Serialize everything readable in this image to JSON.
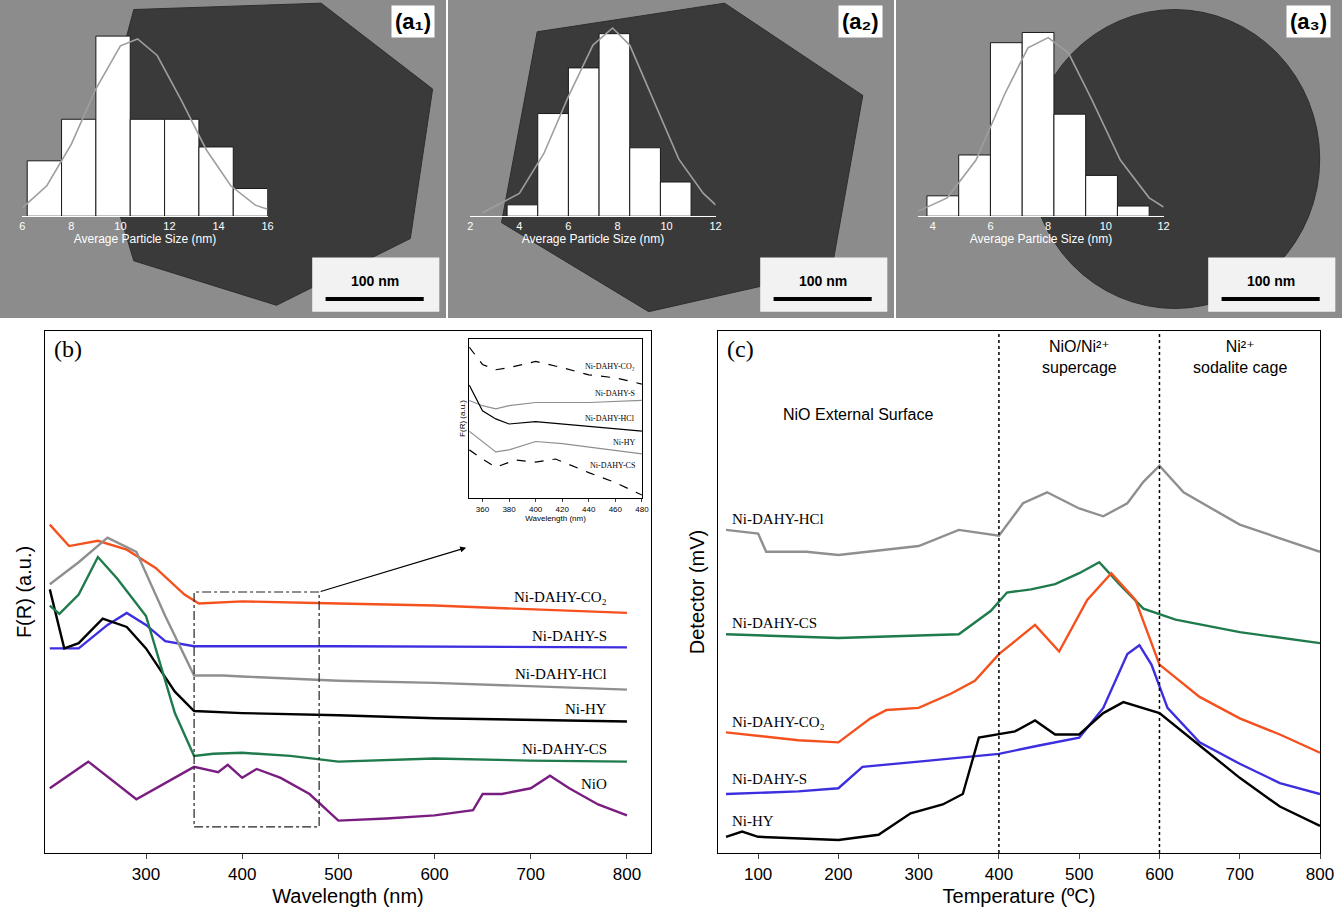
{
  "chart_data": [
    {
      "type": "histogram",
      "title": "(a₁)",
      "x_label": "Average Particle Size (nm)",
      "annotations": [
        "100 nm"
      ],
      "bins": [
        6.2,
        7.6,
        9,
        10.4,
        11.8,
        13.2,
        14.6,
        16
      ],
      "values": [
        4,
        7,
        13,
        7,
        7,
        5,
        2
      ],
      "color": "#ffffff",
      "fit": {
        "type": "line",
        "color": "#9e9e9e",
        "x": [
          6,
          7,
          8,
          9,
          10,
          10.7,
          11.5,
          12.5,
          13.5,
          14.5,
          15.5,
          16
        ],
        "values": [
          0.6,
          2.2,
          5.2,
          9.2,
          12.3,
          12.8,
          11.6,
          8.3,
          4.8,
          2.2,
          0.8,
          0.5
        ]
      },
      "xlim": [
        6,
        16
      ],
      "xticks": [
        6,
        8,
        10,
        12,
        14,
        16
      ],
      "ylim": [
        0,
        14
      ],
      "tick_labels": "x",
      "grid": false
    },
    {
      "type": "histogram",
      "title": "(a₂)",
      "x_label": "Average Particle Size (nm)",
      "annotations": [
        "100 nm"
      ],
      "bins": [
        3.5,
        4.75,
        6,
        7.25,
        8.5,
        9.75,
        11
      ],
      "values": [
        1,
        9,
        13,
        16,
        6,
        3
      ],
      "color": "#ffffff",
      "fit": {
        "type": "line",
        "color": "#9e9e9e",
        "x": [
          2.5,
          4,
          5,
          6,
          7,
          7.8,
          8.5,
          9.5,
          10.5,
          11.5,
          12
        ],
        "values": [
          0.3,
          2,
          5.5,
          10.5,
          15,
          16.5,
          15,
          10,
          5,
          2,
          1
        ]
      },
      "xlim": [
        2,
        12
      ],
      "xticks": [
        2,
        4,
        6,
        8,
        10,
        12
      ],
      "ylim": [
        0,
        17
      ],
      "tick_labels": "x",
      "grid": false
    },
    {
      "type": "histogram",
      "title": "(a₃)",
      "x_label": "Average Particle Size (nm)",
      "annotations": [
        "100 nm"
      ],
      "bins": [
        3.8,
        4.9,
        6,
        7.1,
        8.2,
        9.3,
        10.4,
        11.5
      ],
      "values": [
        2,
        6,
        17,
        18,
        10,
        4,
        1
      ],
      "color": "#ffffff",
      "fit": {
        "type": "line",
        "color": "#9e9e9e",
        "x": [
          3.5,
          4.5,
          5.5,
          6.5,
          7.3,
          8,
          8.7,
          9.5,
          10.5,
          11.5,
          12
        ],
        "values": [
          0.5,
          1.8,
          5.5,
          12,
          16.5,
          17.5,
          16,
          11.5,
          5.5,
          1.8,
          0.9
        ]
      },
      "xlim": [
        3.5,
        12
      ],
      "xticks": [
        4,
        6,
        8,
        10,
        12
      ],
      "ylim": [
        0,
        19
      ],
      "tick_labels": "x",
      "grid": false
    },
    {
      "type": "line",
      "title": "(b)",
      "x_label": "Wavelength (nm)",
      "y_label": "F(R) (a.u.)",
      "xlim": [
        195,
        825
      ],
      "xticks": [
        300,
        400,
        500,
        600,
        700,
        800
      ],
      "ylim": [
        0,
        100
      ],
      "tick_labels": "x",
      "grid": false,
      "series": [
        {
          "name": "Ni-DAHY-CO₂",
          "color": "#f4511e",
          "line_style": "solid",
          "x": [
            200,
            220,
            250,
            280,
            310,
            340,
            355,
            400,
            500,
            600,
            800
          ],
          "values": [
            62.9,
            58.8,
            59.8,
            58.1,
            54.6,
            49.5,
            47.8,
            48.2,
            47.8,
            47.4,
            46.0
          ]
        },
        {
          "name": "Ni-DAHY-S",
          "color": "#3d2ee0",
          "line_style": "solid",
          "x": [
            200,
            230,
            260,
            280,
            300,
            320,
            350,
            500,
            800
          ],
          "values": [
            39.2,
            39.2,
            43.7,
            46.0,
            43.7,
            40.6,
            39.6,
            39.6,
            39.4
          ]
        },
        {
          "name": "Ni-DAHY-HCl",
          "color": "#8f8f8f",
          "line_style": "solid",
          "x": [
            200,
            230,
            260,
            290,
            320,
            350,
            380,
            400,
            500,
            600,
            800
          ],
          "values": [
            51.5,
            55.7,
            60.4,
            57.7,
            45.4,
            34.0,
            34.0,
            33.8,
            33.0,
            32.6,
            31.3
          ]
        },
        {
          "name": "Ni-HY",
          "color": "#000000",
          "line_style": "solid",
          "x": [
            200,
            215,
            230,
            255,
            280,
            300,
            330,
            350,
            400,
            500,
            600,
            800
          ],
          "values": [
            50.5,
            39.2,
            40.2,
            44.9,
            43.3,
            39.2,
            30.9,
            27.2,
            26.8,
            26.4,
            25.8,
            25.2
          ]
        },
        {
          "name": "Ni-DAHY-CS",
          "color": "#1f7a4c",
          "line_style": "solid",
          "x": [
            200,
            210,
            230,
            250,
            270,
            300,
            330,
            350,
            370,
            400,
            450,
            500,
            600,
            700,
            800
          ],
          "values": [
            47.4,
            45.8,
            49.5,
            56.7,
            52.6,
            45.4,
            26.8,
            18.6,
            19.0,
            19.2,
            18.6,
            17.5,
            18.1,
            17.7,
            17.5
          ]
        },
        {
          "name": "NiO",
          "color": "#7a1d80",
          "line_style": "solid",
          "x": [
            200,
            240,
            290,
            350,
            375,
            385,
            400,
            415,
            440,
            470,
            500,
            550,
            600,
            640,
            650,
            670,
            700,
            720,
            740,
            770,
            800
          ],
          "values": [
            12.4,
            17.5,
            10.3,
            16.5,
            15.5,
            16.9,
            14.4,
            16.1,
            14.4,
            11.3,
            6.2,
            6.6,
            7.2,
            8.2,
            11.3,
            11.3,
            12.4,
            14.8,
            12.4,
            9.3,
            7.2
          ]
        }
      ],
      "inset": {
        "type": "line",
        "x_label": "Wavelength (nm)",
        "y_label": "F(R) (a.u.)",
        "xlim": [
          350,
          480
        ],
        "xticks": [
          360,
          380,
          400,
          420,
          440,
          460,
          480
        ],
        "ylim": [
          0,
          100
        ],
        "tick_labels": "x",
        "grid": false,
        "series": [
          {
            "name": "Ni-DAHY-CO₂",
            "color": "#000000",
            "line_style": "dashed",
            "x": [
              350,
              360,
              370,
              380,
              400,
              420,
              440,
              460,
              480
            ],
            "values": [
              94.8,
              83.9,
              80.6,
              81.9,
              85.8,
              81.9,
              77.4,
              75.5,
              71.6
            ]
          },
          {
            "name": "Ni-DAHY-S",
            "color": "#8f8f8f",
            "line_style": "solid",
            "x": [
              350,
              360,
              370,
              380,
              400,
              440,
              480
            ],
            "values": [
              61.3,
              58,
              56,
              58,
              60,
              60,
              61.3
            ]
          },
          {
            "name": "Ni-DAHY-HCl",
            "color": "#000000",
            "line_style": "solid",
            "x": [
              350,
              360,
              370,
              380,
              400,
              440,
              480
            ],
            "values": [
              71,
              54.8,
              49.7,
              46.5,
              48,
              45,
              42
            ]
          },
          {
            "name": "Ni-HY",
            "color": "#8f8f8f",
            "line_style": "solid",
            "x": [
              350,
              360,
              370,
              380,
              400,
              420,
              440,
              480
            ],
            "values": [
              42,
              35.5,
              29,
              30.3,
              35.5,
              34.2,
              32,
              27.7
            ]
          },
          {
            "name": "Ni-DAHY-CS",
            "color": "#000000",
            "line_style": "dashed",
            "x": [
              350,
              360,
              370,
              385,
              400,
              415,
              440,
              460,
              480
            ],
            "values": [
              30.3,
              24.5,
              19.4,
              23.9,
              22.6,
              24.5,
              16,
              9.7,
              1.9
            ]
          }
        ]
      }
    },
    {
      "type": "line",
      "title": "(c)",
      "x_label": "Temperature (ºC)",
      "y_label": "Detector (mV)",
      "xlim": [
        50,
        800
      ],
      "xticks": [
        100,
        200,
        300,
        400,
        500,
        600,
        700,
        800
      ],
      "ylim": [
        0,
        100
      ],
      "tick_labels": "x",
      "grid": false,
      "regions": [
        {
          "lines": [
            "NiO External Surface"
          ],
          "from": 50,
          "to": 400
        },
        {
          "lines": [
            "NiO/Ni²⁺",
            "supercage"
          ],
          "from": 400,
          "to": 600
        },
        {
          "lines": [
            "Ni²⁺",
            "sodalite cage"
          ],
          "from": 600,
          "to": 800
        }
      ],
      "series": [
        {
          "name": "Ni-DAHY-HCl",
          "color": "#8f8f8f",
          "line_style": "solid",
          "x": [
            60,
            100,
            110,
            160,
            200,
            300,
            350,
            400,
            430,
            460,
            500,
            530,
            560,
            580,
            600,
            630,
            700,
            800
          ],
          "values": [
            61.9,
            61.2,
            57.7,
            57.7,
            57.1,
            58.8,
            61.9,
            60.8,
            67.0,
            69.1,
            66.0,
            64.5,
            67.0,
            71.1,
            74.2,
            69.1,
            62.9,
            57.7
          ]
        },
        {
          "name": "Ni-DAHY-CS",
          "color": "#1f7a4c",
          "line_style": "solid",
          "x": [
            60,
            200,
            350,
            390,
            410,
            440,
            470,
            500,
            525,
            550,
            580,
            620,
            700,
            800
          ],
          "values": [
            41.9,
            41.2,
            41.9,
            46.4,
            49.9,
            50.5,
            51.5,
            53.6,
            55.7,
            51.5,
            46.8,
            44.7,
            42.3,
            40.2
          ]
        },
        {
          "name": "Ni-DAHY-CO₂",
          "color": "#f4511e",
          "line_style": "solid",
          "x": [
            60,
            150,
            200,
            240,
            260,
            300,
            340,
            370,
            400,
            445,
            475,
            510,
            540,
            570,
            600,
            650,
            700,
            750,
            800
          ],
          "values": [
            23.1,
            21.6,
            21.2,
            25.8,
            27.4,
            27.8,
            30.5,
            33.0,
            38.1,
            43.7,
            38.6,
            48.5,
            53.6,
            48.5,
            36.1,
            29.9,
            25.8,
            22.7,
            19.2
          ]
        },
        {
          "name": "Ni-DAHY-S",
          "color": "#3d2ee0",
          "line_style": "solid",
          "x": [
            60,
            150,
            200,
            230,
            300,
            400,
            450,
            500,
            530,
            560,
            575,
            590,
            610,
            650,
            700,
            750,
            800
          ],
          "values": [
            11.3,
            11.8,
            12.4,
            16.5,
            17.5,
            19.0,
            20.6,
            22.1,
            27.8,
            38.1,
            39.8,
            36.1,
            27.8,
            21.2,
            17.1,
            13.4,
            11.3
          ]
        },
        {
          "name": "Ni-HY",
          "color": "#000000",
          "line_style": "solid",
          "x": [
            60,
            80,
            100,
            200,
            250,
            290,
            330,
            355,
            375,
            400,
            420,
            445,
            470,
            500,
            530,
            555,
            600,
            650,
            700,
            750,
            800
          ],
          "values": [
            3.1,
            4.1,
            3.1,
            2.5,
            3.5,
            7.6,
            9.3,
            11.3,
            22.1,
            22.7,
            23.3,
            25.4,
            22.7,
            22.7,
            26.8,
            28.9,
            26.8,
            20.6,
            14.4,
            8.9,
            5.2
          ]
        }
      ]
    }
  ]
}
